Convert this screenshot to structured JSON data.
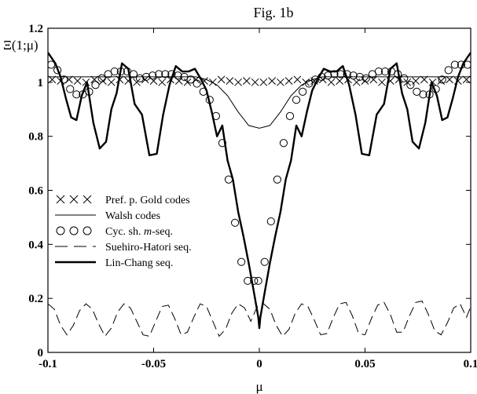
{
  "chart_data": {
    "type": "line",
    "title": "Fig. 1b",
    "xlabel": "μ",
    "ylabel": "Ξ(1;μ)",
    "xlim": [
      -0.1,
      0.1
    ],
    "ylim": [
      0,
      1.2
    ],
    "xticks": [
      -0.1,
      -0.05,
      0,
      0.05,
      0.1
    ],
    "xtick_labels": [
      "-0.1",
      "-0.05",
      "0",
      "0.05",
      "0.1"
    ],
    "yticks": [
      0,
      0.2,
      0.4,
      0.6,
      0.8,
      1,
      1.2
    ],
    "ytick_labels": [
      "0",
      "0.2",
      "0.4",
      "0.6",
      "0.8",
      "1",
      "1.2"
    ],
    "grid": false,
    "legend_position": "middle-left",
    "series": [
      {
        "name": "Pref. p. Gold codes",
        "style": "x-markers",
        "x": [
          -0.098,
          -0.094,
          -0.09,
          -0.086,
          -0.082,
          -0.078,
          -0.074,
          -0.07,
          -0.066,
          -0.062,
          -0.058,
          -0.054,
          -0.05,
          -0.046,
          -0.042,
          -0.038,
          -0.034,
          -0.03,
          -0.026,
          -0.022,
          -0.018,
          -0.014,
          -0.01,
          -0.006,
          -0.002,
          0.002,
          0.006,
          0.01,
          0.014,
          0.018,
          0.022,
          0.026,
          0.03,
          0.034,
          0.038,
          0.042,
          0.046,
          0.05,
          0.054,
          0.058,
          0.062,
          0.066,
          0.07,
          0.074,
          0.078,
          0.082,
          0.086,
          0.09,
          0.094,
          0.098
        ],
        "y": [
          1.01,
          1.005,
          1.01,
          1.005,
          1.0,
          1.01,
          1.005,
          1.0,
          1.01,
          1.005,
          1.0,
          1.01,
          1.005,
          1.0,
          1.01,
          1.005,
          1.0,
          1.01,
          1.005,
          1.0,
          1.01,
          1.005,
          1.0,
          1.005,
          1.0,
          1.0,
          1.005,
          1.0,
          1.005,
          1.01,
          1.0,
          1.005,
          1.01,
          1.0,
          1.005,
          1.01,
          1.0,
          1.005,
          1.01,
          1.0,
          1.005,
          1.01,
          1.0,
          1.005,
          1.01,
          1.0,
          1.005,
          1.01,
          1.005,
          1.01
        ]
      },
      {
        "name": "Walsh codes",
        "style": "thin-line",
        "x": [
          -0.1,
          -0.095,
          -0.09,
          -0.08,
          -0.07,
          -0.06,
          -0.05,
          -0.04,
          -0.03,
          -0.025,
          -0.02,
          -0.015,
          -0.01,
          -0.005,
          0,
          0.005,
          0.01,
          0.015,
          0.02,
          0.025,
          0.03,
          0.04,
          0.05,
          0.06,
          0.07,
          0.08,
          0.09,
          0.095,
          0.1
        ],
        "y": [
          1.02,
          1.02,
          1.02,
          1.02,
          1.02,
          1.02,
          1.02,
          1.02,
          1.02,
          1.01,
          0.99,
          0.95,
          0.89,
          0.84,
          0.83,
          0.84,
          0.89,
          0.95,
          0.99,
          1.01,
          1.02,
          1.02,
          1.02,
          1.02,
          1.02,
          1.02,
          1.02,
          1.02,
          1.02
        ]
      },
      {
        "name": "Cyc. sh. m-seq.",
        "style": "circle-markers",
        "x": [
          -0.0985,
          -0.0955,
          -0.0925,
          -0.0895,
          -0.0865,
          -0.0835,
          -0.0805,
          -0.0775,
          -0.0745,
          -0.0715,
          -0.0685,
          -0.0655,
          -0.0625,
          -0.0595,
          -0.0565,
          -0.0535,
          -0.0505,
          -0.0475,
          -0.0445,
          -0.0415,
          -0.0385,
          -0.0355,
          -0.0325,
          -0.0295,
          -0.0265,
          -0.0235,
          -0.0205,
          -0.0175,
          -0.0145,
          -0.0115,
          -0.0085,
          -0.0055,
          -0.0025,
          -0.0005,
          0.0025,
          0.0055,
          0.0085,
          0.0115,
          0.0145,
          0.0175,
          0.0205,
          0.0235,
          0.0265,
          0.0295,
          0.0325,
          0.0355,
          0.0385,
          0.0415,
          0.0445,
          0.0475,
          0.0505,
          0.0535,
          0.0565,
          0.0595,
          0.0625,
          0.0655,
          0.0685,
          0.0715,
          0.0745,
          0.0775,
          0.0805,
          0.0835,
          0.0865,
          0.0895,
          0.0925,
          0.0955,
          0.0985
        ],
        "y": [
          1.065,
          1.045,
          1.01,
          0.975,
          0.955,
          0.955,
          0.965,
          0.99,
          1.015,
          1.03,
          1.04,
          1.04,
          1.04,
          1.03,
          1.015,
          1.02,
          1.025,
          1.03,
          1.03,
          1.03,
          1.025,
          1.02,
          1.01,
          0.995,
          0.965,
          0.935,
          0.875,
          0.775,
          0.64,
          0.48,
          0.335,
          0.265,
          0.265,
          0.265,
          0.335,
          0.485,
          0.64,
          0.775,
          0.875,
          0.935,
          0.965,
          0.995,
          1.01,
          1.02,
          1.025,
          1.03,
          1.03,
          1.03,
          1.025,
          1.02,
          1.015,
          1.03,
          1.04,
          1.04,
          1.04,
          1.03,
          1.015,
          0.99,
          0.965,
          0.955,
          0.955,
          0.975,
          1.01,
          1.045,
          1.065,
          1.065,
          1.065
        ]
      },
      {
        "name": "Suehiro-Hatori seq.",
        "style": "dashed-line",
        "x": [
          -0.1,
          -0.097,
          -0.094,
          -0.091,
          -0.088,
          -0.085,
          -0.082,
          -0.079,
          -0.076,
          -0.073,
          -0.07,
          -0.067,
          -0.064,
          -0.061,
          -0.058,
          -0.055,
          -0.052,
          -0.049,
          -0.046,
          -0.043,
          -0.04,
          -0.037,
          -0.034,
          -0.031,
          -0.028,
          -0.025,
          -0.022,
          -0.019,
          -0.016,
          -0.013,
          -0.01,
          -0.007,
          -0.004,
          -0.001,
          0.002,
          0.005,
          0.008,
          0.011,
          0.014,
          0.017,
          0.02,
          0.023,
          0.026,
          0.029,
          0.032,
          0.035,
          0.038,
          0.041,
          0.044,
          0.047,
          0.05,
          0.053,
          0.056,
          0.059,
          0.062,
          0.065,
          0.068,
          0.071,
          0.074,
          0.077,
          0.08,
          0.083,
          0.086,
          0.089,
          0.092,
          0.095,
          0.098,
          0.1
        ],
        "y": [
          0.18,
          0.16,
          0.1,
          0.065,
          0.1,
          0.155,
          0.18,
          0.16,
          0.105,
          0.06,
          0.09,
          0.15,
          0.18,
          0.165,
          0.115,
          0.065,
          0.06,
          0.115,
          0.17,
          0.175,
          0.125,
          0.065,
          0.075,
          0.13,
          0.18,
          0.17,
          0.115,
          0.06,
          0.085,
          0.145,
          0.18,
          0.165,
          0.115,
          0.17,
          0.18,
          0.16,
          0.1,
          0.06,
          0.085,
          0.145,
          0.18,
          0.17,
          0.12,
          0.065,
          0.07,
          0.13,
          0.18,
          0.185,
          0.135,
          0.07,
          0.065,
          0.125,
          0.175,
          0.185,
          0.14,
          0.075,
          0.075,
          0.135,
          0.185,
          0.19,
          0.14,
          0.08,
          0.065,
          0.11,
          0.165,
          0.18,
          0.13,
          0.17
        ]
      },
      {
        "name": "Lin-Chang seq.",
        "style": "thick-line",
        "x": [
          -0.1,
          -0.0965,
          -0.094,
          -0.0915,
          -0.089,
          -0.0865,
          -0.084,
          -0.0815,
          -0.0785,
          -0.0755,
          -0.0725,
          -0.07,
          -0.0675,
          -0.065,
          -0.062,
          -0.059,
          -0.0555,
          -0.052,
          -0.0485,
          -0.0455,
          -0.0425,
          -0.0395,
          -0.0365,
          -0.0335,
          -0.0305,
          -0.0275,
          -0.025,
          -0.0225,
          -0.02,
          -0.0175,
          -0.015,
          -0.0125,
          -0.01,
          -0.0075,
          -0.005,
          -0.0025,
          -0.0005,
          0.0,
          0.0005,
          0.0025,
          0.005,
          0.0075,
          0.01,
          0.0125,
          0.015,
          0.0175,
          0.02,
          0.0225,
          0.025,
          0.0275,
          0.0305,
          0.0335,
          0.0365,
          0.0395,
          0.0425,
          0.0455,
          0.0485,
          0.052,
          0.0555,
          0.059,
          0.062,
          0.065,
          0.0675,
          0.07,
          0.0725,
          0.0755,
          0.0785,
          0.0815,
          0.084,
          0.0865,
          0.089,
          0.0915,
          0.094,
          0.0965,
          0.1
        ],
        "y": [
          1.11,
          1.07,
          1.02,
          0.94,
          0.87,
          0.86,
          0.95,
          1.0,
          0.85,
          0.755,
          0.78,
          0.9,
          0.96,
          1.07,
          1.05,
          0.92,
          0.88,
          0.73,
          0.735,
          0.88,
          0.99,
          1.06,
          1.04,
          1.04,
          1.05,
          1.01,
          0.97,
          0.89,
          0.8,
          0.84,
          0.71,
          0.64,
          0.52,
          0.43,
          0.33,
          0.22,
          0.13,
          0.09,
          0.13,
          0.22,
          0.33,
          0.43,
          0.52,
          0.64,
          0.71,
          0.84,
          0.8,
          0.89,
          0.97,
          1.01,
          1.05,
          1.04,
          1.04,
          1.06,
          0.99,
          0.88,
          0.735,
          0.73,
          0.88,
          0.92,
          1.05,
          1.07,
          0.96,
          0.9,
          0.78,
          0.755,
          0.85,
          1.0,
          0.95,
          0.86,
          0.87,
          0.94,
          1.02,
          1.07,
          1.11
        ]
      }
    ]
  }
}
